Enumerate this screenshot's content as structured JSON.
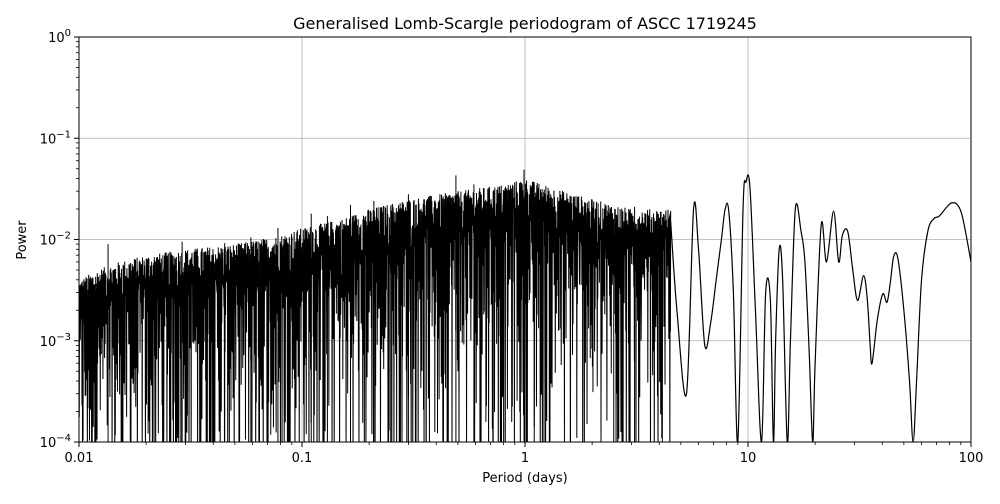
{
  "chart_data": {
    "type": "line",
    "title": "Generalised Lomb-Scargle periodogram of ASCC 1719245",
    "xlabel": "Period (days)",
    "ylabel": "Power",
    "xscale": "log",
    "yscale": "log",
    "xlim": [
      0.01,
      100
    ],
    "ylim": [
      0.0001,
      1
    ],
    "grid": true,
    "line_color": "#000000",
    "x_ticks": [
      {
        "value": 0.01,
        "label": "0.01"
      },
      {
        "value": 0.1,
        "label": "0.1"
      },
      {
        "value": 1,
        "label": "1"
      },
      {
        "value": 10,
        "label": "10"
      },
      {
        "value": 100,
        "label": "100"
      }
    ],
    "y_ticks": [
      {
        "value": 0.0001,
        "base": "10",
        "exp": "−4"
      },
      {
        "value": 0.001,
        "base": "10",
        "exp": "−3"
      },
      {
        "value": 0.01,
        "base": "10",
        "exp": "−2"
      },
      {
        "value": 0.1,
        "base": "10",
        "exp": "−1"
      },
      {
        "value": 1,
        "base": "10",
        "exp": "0"
      }
    ],
    "series": [
      {
        "envelope": [
          [
            0.01,
            0.004
          ],
          [
            0.012,
            0.005
          ],
          [
            0.015,
            0.006
          ],
          [
            0.02,
            0.007
          ],
          [
            0.03,
            0.008
          ],
          [
            0.05,
            0.009
          ],
          [
            0.08,
            0.011
          ],
          [
            0.1,
            0.013
          ],
          [
            0.15,
            0.016
          ],
          [
            0.2,
            0.02
          ],
          [
            0.3,
            0.025
          ],
          [
            0.5,
            0.03
          ],
          [
            0.8,
            0.035
          ],
          [
            1.0,
            0.04
          ],
          [
            1.5,
            0.03
          ],
          [
            2.0,
            0.025
          ],
          [
            3.0,
            0.02
          ],
          [
            4.0,
            0.02
          ]
        ],
        "peaks": [
          [
            0.0135,
            0.009
          ],
          [
            0.029,
            0.0095
          ],
          [
            0.045,
            0.0092
          ],
          [
            0.059,
            0.0105
          ],
          [
            0.078,
            0.013
          ],
          [
            0.11,
            0.018
          ],
          [
            0.13,
            0.017
          ],
          [
            0.165,
            0.022
          ],
          [
            0.21,
            0.024
          ],
          [
            0.25,
            0.021
          ],
          [
            0.3,
            0.028
          ],
          [
            0.36,
            0.022
          ],
          [
            0.49,
            0.043
          ],
          [
            0.59,
            0.035
          ],
          [
            0.72,
            0.03
          ],
          [
            0.99,
            0.049
          ],
          [
            1.1,
            0.035
          ],
          [
            1.6,
            0.02
          ],
          [
            2.5,
            0.016
          ],
          [
            3.1,
            0.021
          ]
        ],
        "points": [
          [
            4.5,
            0.015
          ],
          [
            4.8,
            0.002
          ],
          [
            5.3,
            0.0003
          ],
          [
            5.7,
            0.02
          ],
          [
            6.0,
            0.008
          ],
          [
            6.4,
            0.0009
          ],
          [
            6.8,
            0.0015
          ],
          [
            7.2,
            0.004
          ],
          [
            7.6,
            0.01
          ],
          [
            7.9,
            0.02
          ],
          [
            8.2,
            0.019
          ],
          [
            8.6,
            0.003
          ],
          [
            9.0,
            0.0001
          ],
          [
            9.5,
            0.02
          ],
          [
            9.8,
            0.037
          ],
          [
            10.2,
            0.033
          ],
          [
            10.8,
            0.002
          ],
          [
            11.5,
            0.0001
          ],
          [
            12.0,
            0.003
          ],
          [
            12.6,
            0.0025
          ],
          [
            13.0,
            0.0001
          ],
          [
            13.3,
            0.001
          ],
          [
            13.8,
            0.008
          ],
          [
            14.3,
            0.004
          ],
          [
            15.0,
            0.0001
          ],
          [
            15.5,
            0.001
          ],
          [
            16.3,
            0.02
          ],
          [
            17.3,
            0.012
          ],
          [
            18.0,
            0.006
          ],
          [
            18.8,
            0.0008
          ],
          [
            19.5,
            0.0001
          ],
          [
            20.0,
            0.0006
          ],
          [
            21.3,
            0.014
          ],
          [
            22.5,
            0.006
          ],
          [
            24.2,
            0.019
          ],
          [
            25.5,
            0.006
          ],
          [
            26.5,
            0.011
          ],
          [
            28.0,
            0.012
          ],
          [
            29.5,
            0.005
          ],
          [
            31.0,
            0.0025
          ],
          [
            33.0,
            0.0044
          ],
          [
            34.3,
            0.0025
          ],
          [
            35.3,
            0.0009
          ],
          [
            36.0,
            0.0006
          ],
          [
            38.0,
            0.0016
          ],
          [
            40.2,
            0.0029
          ],
          [
            42.0,
            0.0024
          ],
          [
            43.5,
            0.0038
          ],
          [
            45.0,
            0.0068
          ],
          [
            47.0,
            0.0065
          ],
          [
            50.0,
            0.002
          ],
          [
            53.0,
            0.0004
          ],
          [
            55.0,
            0.0001
          ],
          [
            57.0,
            0.0004
          ],
          [
            60.0,
            0.004
          ],
          [
            64.0,
            0.012
          ],
          [
            68.0,
            0.016
          ],
          [
            72.0,
            0.017
          ],
          [
            78.0,
            0.021
          ],
          [
            82.0,
            0.023
          ],
          [
            87.0,
            0.022
          ],
          [
            92.0,
            0.016
          ],
          [
            100.0,
            0.006
          ]
        ]
      }
    ]
  }
}
